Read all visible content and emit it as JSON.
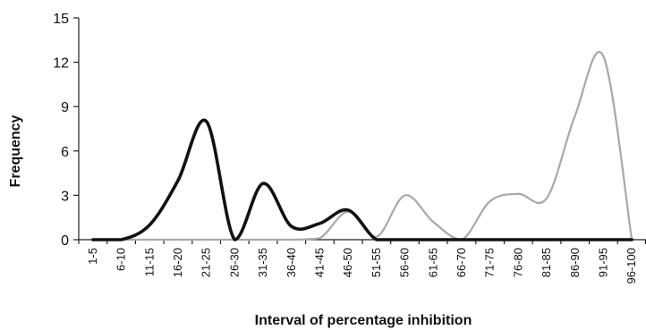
{
  "chart_data": {
    "type": "line",
    "title": "",
    "xlabel": "Interval of percentage inhibition",
    "ylabel": "Frequency",
    "ylim": [
      0,
      15
    ],
    "yticks": [
      0,
      3,
      6,
      9,
      12,
      15
    ],
    "grid": false,
    "legend": "none",
    "categories": [
      "1-5",
      "6-10",
      "11-15",
      "16-20",
      "21-25",
      "26-30",
      "31-35",
      "36-40",
      "41-45",
      "46-50",
      "51-55",
      "56-60",
      "61-65",
      "66-70",
      "71-75",
      "76-80",
      "81-85",
      "86-90",
      "91-95",
      "96-100"
    ],
    "series": [
      {
        "color": "#111111",
        "values": [
          0,
          0,
          1,
          4,
          8,
          0,
          3.8,
          0.9,
          1.1,
          2,
          0,
          0,
          0,
          0,
          0,
          0,
          0,
          0,
          0,
          0
        ]
      },
      {
        "color": "#a8a8a8",
        "values": [
          0,
          0,
          0,
          0,
          0,
          0,
          0,
          0,
          0.1,
          1.9,
          0.2,
          3,
          1.2,
          0,
          2.6,
          3.1,
          2.8,
          8.4,
          12.4,
          0
        ]
      }
    ]
  }
}
